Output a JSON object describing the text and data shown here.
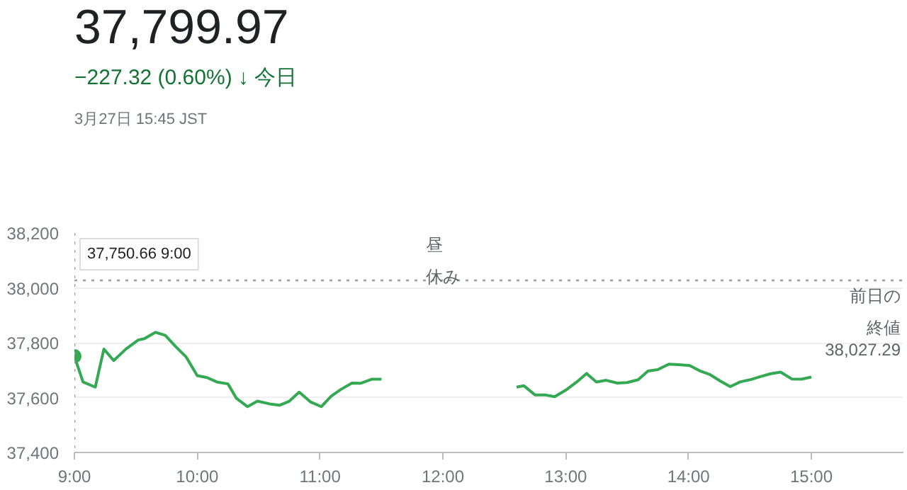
{
  "chart_data": {
    "type": "line",
    "title": "37,799.97",
    "subtitle": "−227.32 (0.60%) ↓ 今日",
    "annotations": [
      "3月27日 15:45 JST",
      "37,750.66 9:00",
      "昼休み",
      "38,027.29"
    ],
    "x": [
      9.0,
      9.07,
      9.17,
      9.24,
      9.32,
      9.42,
      9.52,
      9.57,
      9.66,
      9.74,
      9.82,
      9.91,
      10.0,
      10.08,
      10.16,
      10.25,
      10.32,
      10.41,
      10.49,
      10.59,
      10.67,
      10.75,
      10.83,
      10.92,
      11.01,
      11.09,
      11.17,
      11.26,
      11.33,
      11.42,
      11.5,
      12.0,
      12.6,
      12.66,
      12.75,
      12.83,
      12.91,
      13.0,
      13.09,
      13.17,
      13.25,
      13.33,
      13.42,
      13.5,
      13.59,
      13.67,
      13.75,
      13.84,
      13.92,
      14.01,
      14.09,
      14.17,
      14.26,
      14.34,
      14.42,
      14.5,
      14.59,
      14.67,
      14.75,
      14.84,
      14.92,
      15.0
    ],
    "series": [
      {
        "color": "#34a853",
        "values": [
          37750.66,
          37657,
          37638,
          37777,
          37735,
          37777,
          37810,
          37815,
          37838,
          37827,
          37788,
          37748,
          37680,
          37673,
          37657,
          37650,
          37597,
          37567,
          37587,
          37577,
          37572,
          37587,
          37620,
          37585,
          37567,
          37605,
          37630,
          37653,
          37652,
          37667,
          37667,
          null,
          37638,
          37643,
          37610,
          37610,
          37603,
          37627,
          37657,
          37688,
          37657,
          37663,
          37653,
          37655,
          37665,
          37697,
          37702,
          37722,
          37720,
          37717,
          37698,
          37685,
          37660,
          37640,
          37657,
          37665,
          37677,
          37687,
          37693,
          37668,
          37667,
          37675
        ]
      }
    ],
    "xlim": [
      9,
      15.75
    ],
    "xticks": [
      {
        "value": 9,
        "label": "9:00"
      },
      {
        "value": 10,
        "label": "10:00"
      },
      {
        "value": 11,
        "label": "11:00"
      },
      {
        "value": 12,
        "label": "12:00"
      },
      {
        "value": 13,
        "label": "13:00"
      },
      {
        "value": 14,
        "label": "14:00"
      },
      {
        "value": 15,
        "label": "15:00"
      }
    ],
    "ylim": [
      37400,
      38200
    ],
    "yticks": [
      {
        "value": 37400,
        "label": "37,400"
      },
      {
        "value": 37600,
        "label": "37,600"
      },
      {
        "value": 37800,
        "label": "37,800"
      },
      {
        "value": 38000,
        "label": "38,000"
      },
      {
        "value": 38200,
        "label": "38,200"
      }
    ],
    "ref_lines": [
      {
        "axis": "y",
        "value": 38027.29,
        "label": "前日の終値",
        "color": "#9e9e9e",
        "line_style": "dotted"
      },
      {
        "axis": "x",
        "value": 9,
        "color": "#9e9e9e",
        "line_style": "dotted"
      }
    ],
    "grid": "y",
    "marker": "none",
    "line_style": "solid"
  }
}
